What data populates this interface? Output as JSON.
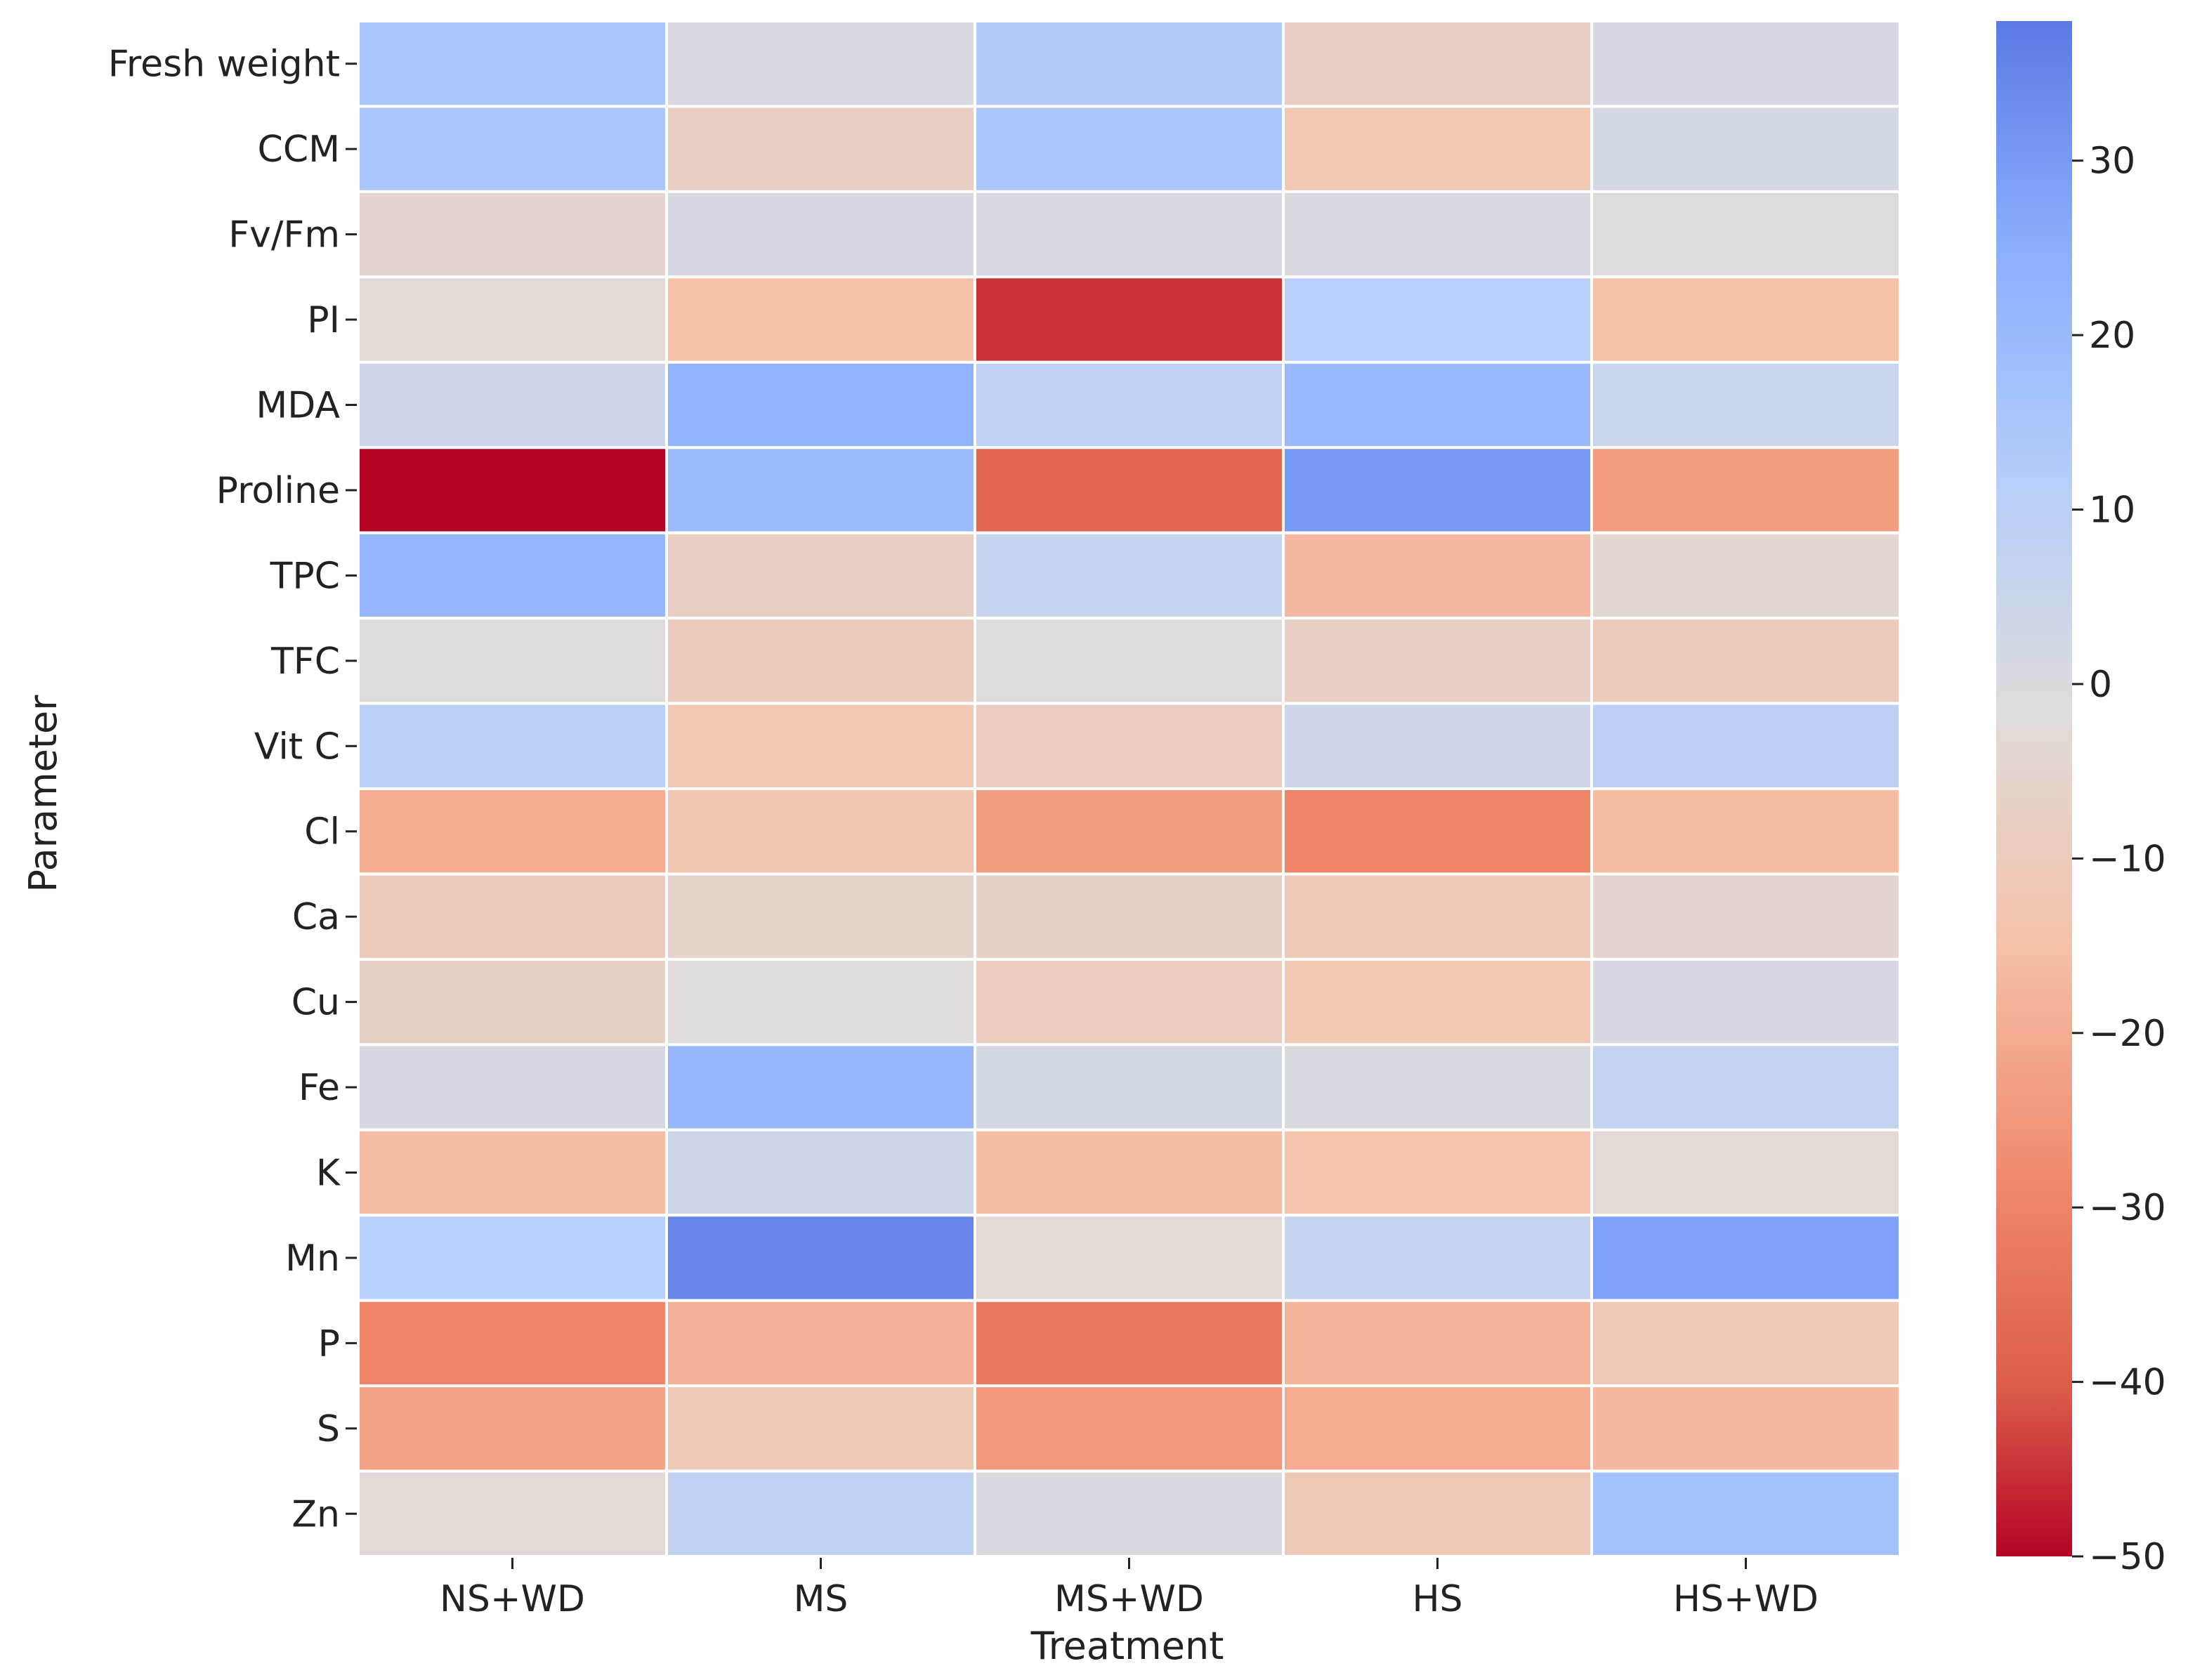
{
  "chart_data": {
    "type": "heatmap",
    "title": "",
    "xlabel": "Treatment",
    "ylabel": "Parameter",
    "categories": [
      "NS+WD",
      "MS",
      "MS+WD",
      "HS",
      "HS+WD"
    ],
    "rows": [
      "Fresh weight",
      "CCM",
      "Fv/Fm",
      "PI",
      "MDA",
      "Proline",
      "TPC",
      "TFC",
      "Vit C",
      "Cl",
      "Ca",
      "Cu",
      "Fe",
      "K",
      "Mn",
      "P",
      "S",
      "Zn"
    ],
    "values": [
      [
        15,
        0,
        13,
        -8,
        1
      ],
      [
        15,
        -8,
        15,
        -12,
        2
      ],
      [
        -5,
        1,
        0,
        0,
        -1
      ],
      [
        -3,
        -15,
        -45,
        11,
        -15
      ],
      [
        4,
        23,
        8,
        20,
        5
      ],
      [
        -50,
        19,
        -38,
        30,
        -24
      ],
      [
        22,
        -8,
        6,
        -17,
        -4
      ],
      [
        -2,
        -10,
        -2,
        -8,
        -10
      ],
      [
        10,
        -12,
        -9,
        4,
        9
      ],
      [
        -20,
        -13,
        -24,
        -30,
        -16
      ],
      [
        -10,
        -6,
        -7,
        -11,
        -5
      ],
      [
        -7,
        -2,
        -9,
        -12,
        1
      ],
      [
        1,
        21,
        2,
        0,
        7
      ],
      [
        -16,
        4,
        -16,
        -14,
        -3
      ],
      [
        11,
        35,
        -3,
        6,
        28
      ],
      [
        -30,
        -19,
        -33,
        -18,
        -11
      ],
      [
        -22,
        -11,
        -25,
        -20,
        -17
      ],
      [
        -3,
        8,
        0,
        -11,
        17
      ]
    ],
    "vmin": -50,
    "vmax": 38,
    "colormap": "coolwarm_r",
    "colorbar_ticks": [
      30,
      20,
      10,
      0,
      -10,
      -20,
      -30,
      -40,
      -50
    ],
    "colorbar_tick_labels": [
      "30",
      "20",
      "10",
      "0",
      "−10",
      "−20",
      "−30",
      "−40",
      "−50"
    ],
    "grid": true
  }
}
